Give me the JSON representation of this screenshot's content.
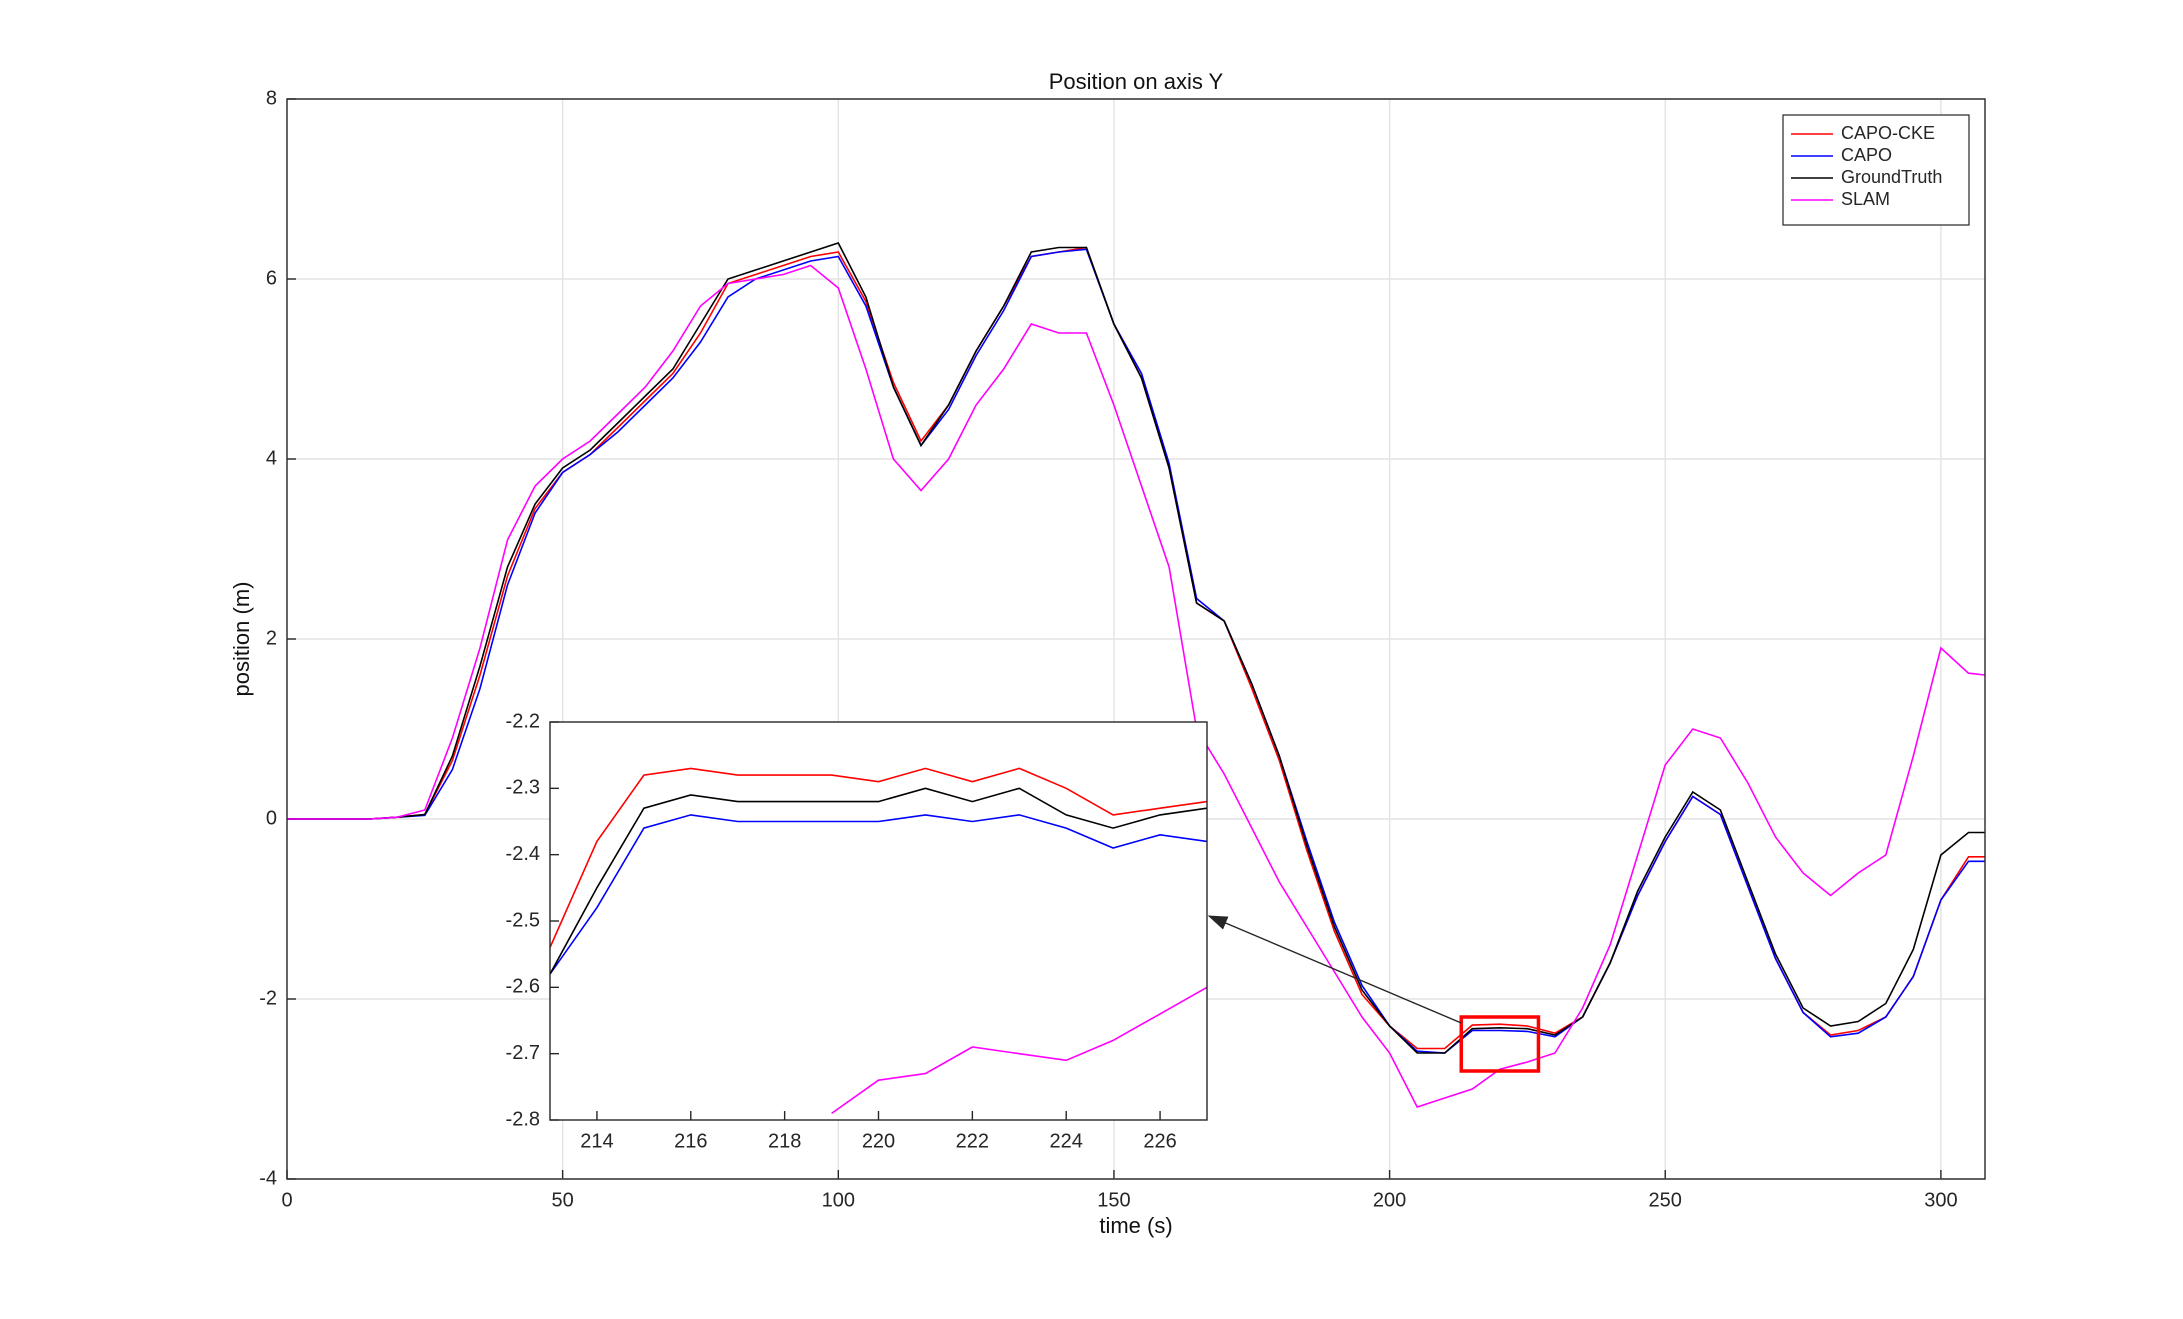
{
  "chart_data": [
    {
      "type": "line",
      "title": "Position on axis Y",
      "x_label": "time (s)",
      "y_label": "position (m)",
      "x": [
        0,
        5,
        10,
        15,
        20,
        25,
        30,
        35,
        40,
        45,
        50,
        55,
        60,
        65,
        70,
        75,
        80,
        85,
        90,
        95,
        100,
        105,
        110,
        115,
        120,
        125,
        130,
        135,
        140,
        145,
        150,
        155,
        160,
        165,
        170,
        175,
        180,
        185,
        190,
        195,
        200,
        205,
        210,
        215,
        220,
        225,
        230,
        235,
        240,
        245,
        250,
        255,
        260,
        265,
        270,
        275,
        280,
        285,
        290,
        295,
        300,
        305,
        308
      ],
      "series": [
        {
          "name": "CAPO-CKE",
          "color": "#ff0000",
          "values": [
            0,
            0,
            0,
            0,
            0.02,
            0.05,
            0.65,
            1.6,
            2.7,
            3.45,
            3.85,
            4.05,
            4.35,
            4.65,
            4.95,
            5.4,
            5.95,
            6.05,
            6.15,
            6.25,
            6.3,
            5.75,
            4.85,
            4.2,
            4.6,
            5.2,
            5.7,
            6.25,
            6.3,
            6.35,
            5.5,
            4.9,
            3.9,
            2.4,
            2.2,
            1.45,
            0.65,
            -0.35,
            -1.25,
            -1.95,
            -2.3,
            -2.55,
            -2.55,
            -2.29,
            -2.28,
            -2.3,
            -2.38,
            -2.2,
            -1.6,
            -0.85,
            -0.25,
            0.25,
            0.05,
            -0.75,
            -1.55,
            -2.15,
            -2.4,
            -2.35,
            -2.2,
            -1.75,
            -0.9,
            -0.42,
            -0.42
          ]
        },
        {
          "name": "CAPO",
          "color": "#0000ff",
          "values": [
            0,
            0,
            0,
            0,
            0.02,
            0.04,
            0.55,
            1.45,
            2.6,
            3.4,
            3.85,
            4.05,
            4.3,
            4.6,
            4.9,
            5.3,
            5.8,
            6.0,
            6.1,
            6.2,
            6.25,
            5.7,
            4.8,
            4.15,
            4.55,
            5.15,
            5.65,
            6.25,
            6.3,
            6.33,
            5.5,
            4.95,
            3.95,
            2.45,
            2.2,
            1.5,
            0.7,
            -0.25,
            -1.15,
            -1.85,
            -2.3,
            -2.58,
            -2.6,
            -2.35,
            -2.35,
            -2.36,
            -2.42,
            -2.2,
            -1.6,
            -0.85,
            -0.25,
            0.25,
            0.05,
            -0.75,
            -1.55,
            -2.15,
            -2.42,
            -2.38,
            -2.2,
            -1.75,
            -0.9,
            -0.47,
            -0.47
          ]
        },
        {
          "name": "GroundTruth",
          "color": "#000000",
          "values": [
            0,
            0,
            0,
            0,
            0.02,
            0.05,
            0.7,
            1.7,
            2.8,
            3.5,
            3.9,
            4.1,
            4.4,
            4.7,
            5.0,
            5.5,
            6.0,
            6.1,
            6.2,
            6.3,
            6.4,
            5.8,
            4.8,
            4.15,
            4.6,
            5.2,
            5.7,
            6.3,
            6.35,
            6.35,
            5.5,
            4.9,
            3.9,
            2.4,
            2.2,
            1.5,
            0.7,
            -0.3,
            -1.2,
            -1.9,
            -2.3,
            -2.6,
            -2.6,
            -2.33,
            -2.32,
            -2.33,
            -2.4,
            -2.2,
            -1.6,
            -0.8,
            -0.2,
            0.3,
            0.1,
            -0.7,
            -1.5,
            -2.1,
            -2.3,
            -2.25,
            -2.05,
            -1.45,
            -0.4,
            -0.15,
            -0.15
          ]
        },
        {
          "name": "SLAM",
          "color": "#ff00ff",
          "values": [
            0,
            0,
            0,
            0,
            0.02,
            0.1,
            0.9,
            1.9,
            3.1,
            3.7,
            4.0,
            4.2,
            4.5,
            4.8,
            5.2,
            5.7,
            5.95,
            6.0,
            6.05,
            6.15,
            5.9,
            5.0,
            4.0,
            3.65,
            4.0,
            4.6,
            5.0,
            5.5,
            5.4,
            5.4,
            4.6,
            3.7,
            2.8,
            1.0,
            0.5,
            -0.1,
            -0.7,
            -1.2,
            -1.7,
            -2.2,
            -2.6,
            -3.2,
            -3.1,
            -3.0,
            -2.78,
            -2.7,
            -2.6,
            -2.1,
            -1.4,
            -0.4,
            0.6,
            1.0,
            0.9,
            0.4,
            -0.2,
            -0.6,
            -0.85,
            -0.6,
            -0.4,
            0.7,
            1.9,
            1.62,
            1.6
          ]
        }
      ],
      "xlim": [
        0,
        308
      ],
      "ylim": [
        -4,
        8
      ],
      "xticks": [
        0,
        50,
        100,
        150,
        200,
        250,
        300
      ],
      "yticks": [
        -4,
        -2,
        0,
        2,
        4,
        6,
        8
      ],
      "grid": true,
      "legend": "upper right"
    },
    {
      "type": "line",
      "x": [
        213,
        214,
        215,
        216,
        217,
        218,
        219,
        220,
        221,
        222,
        223,
        224,
        225,
        226,
        227
      ],
      "series": [
        {
          "name": "CAPO-CKE",
          "color": "#ff0000",
          "values": [
            -2.54,
            -2.38,
            -2.28,
            -2.27,
            -2.28,
            -2.28,
            -2.28,
            -2.29,
            -2.27,
            -2.29,
            -2.27,
            -2.3,
            -2.34,
            -2.33,
            -2.32
          ]
        },
        {
          "name": "CAPO",
          "color": "#0000ff",
          "values": [
            -2.58,
            -2.48,
            -2.36,
            -2.34,
            -2.35,
            -2.35,
            -2.35,
            -2.35,
            -2.34,
            -2.35,
            -2.34,
            -2.36,
            -2.39,
            -2.37,
            -2.38
          ]
        },
        {
          "name": "GroundTruth",
          "color": "#000000",
          "values": [
            -2.58,
            -2.45,
            -2.33,
            -2.31,
            -2.32,
            -2.32,
            -2.32,
            -2.32,
            -2.3,
            -2.32,
            -2.3,
            -2.34,
            -2.36,
            -2.34,
            -2.33
          ]
        },
        {
          "name": "SLAM",
          "color": "#ff00ff",
          "values": [
            null,
            null,
            null,
            null,
            null,
            null,
            -2.79,
            -2.74,
            -2.73,
            -2.69,
            -2.7,
            -2.71,
            -2.68,
            -2.64,
            -2.6
          ]
        }
      ],
      "xlim": [
        213,
        227
      ],
      "ylim": [
        -2.8,
        -2.2
      ],
      "xticks": [
        214,
        216,
        218,
        220,
        222,
        224,
        226
      ],
      "yticks": [
        -2.8,
        -2.7,
        -2.6,
        -2.5,
        -2.4,
        -2.3,
        -2.2
      ],
      "grid": false
    }
  ]
}
